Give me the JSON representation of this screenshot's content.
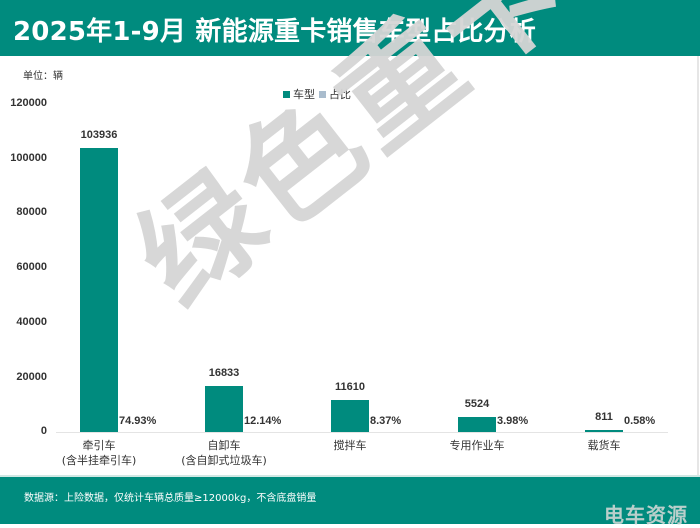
{
  "header": {
    "title": "2025年1-9月 新能源重卡销售车型占比分析"
  },
  "unit_label": "单位：辆",
  "legend": [
    {
      "label": "车型",
      "color": "#008b7e"
    },
    {
      "label": "占比",
      "color": "#a9bccd"
    }
  ],
  "yaxis": {
    "ticks": [
      "120000",
      "100000",
      "80000",
      "60000",
      "40000",
      "20000",
      "0"
    ]
  },
  "watermark": "绿色重卡",
  "footer": {
    "source": "数据源：上险数据，仅统计车辆总质量≥12000kg，不含底盘销量",
    "brand": "电车资源"
  },
  "chart_data": {
    "type": "bar",
    "title": "2025年1-9月 新能源重卡销售车型占比分析",
    "xlabel": "",
    "ylabel": "单位：辆",
    "ylim": [
      0,
      120000
    ],
    "yticks": [
      0,
      20000,
      40000,
      60000,
      80000,
      100000,
      120000
    ],
    "grid": false,
    "legend_position": "top",
    "categories": [
      {
        "line1": "牵引车",
        "line2": "(含半挂牵引车)"
      },
      {
        "line1": "自卸车",
        "line2": "(含自卸式垃圾车)"
      },
      {
        "line1": "搅拌车",
        "line2": ""
      },
      {
        "line1": "专用作业车",
        "line2": ""
      },
      {
        "line1": "载货车",
        "line2": ""
      }
    ],
    "series": [
      {
        "name": "车型",
        "values": [
          103936,
          16833,
          11610,
          5524,
          811
        ],
        "labels": [
          "103936",
          "16833",
          "11610",
          "5524",
          "811"
        ],
        "color": "#008b7e"
      },
      {
        "name": "占比",
        "values": [
          74.93,
          12.14,
          8.37,
          3.98,
          0.58
        ],
        "labels": [
          "74.93%",
          "12.14%",
          "8.37%",
          "3.98%",
          "0.58%"
        ],
        "color": "#a9bccd"
      }
    ]
  }
}
